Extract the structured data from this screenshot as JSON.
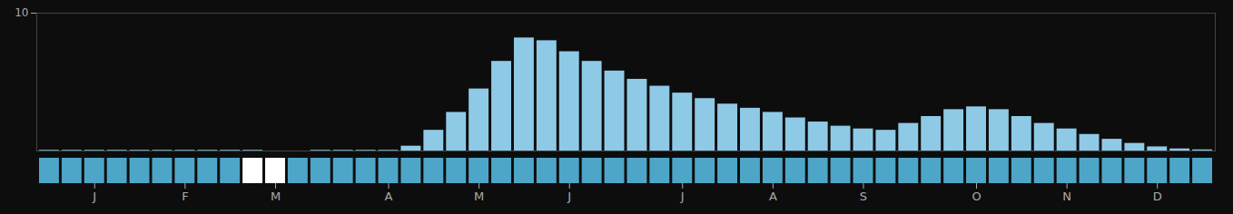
{
  "chart_data": [
    {
      "type": "bar",
      "categories": [
        null,
        null,
        "J",
        null,
        null,
        null,
        "F",
        null,
        null,
        null,
        "M",
        null,
        null,
        null,
        null,
        "A",
        null,
        null,
        null,
        "M",
        null,
        null,
        null,
        "J",
        null,
        null,
        null,
        null,
        "J",
        null,
        null,
        null,
        "A",
        null,
        null,
        null,
        "S",
        null,
        null,
        null,
        null,
        "O",
        null,
        null,
        null,
        "N",
        null,
        null,
        null,
        "D",
        null,
        null
      ],
      "values": [
        0.05,
        0.05,
        0.05,
        0.05,
        0.05,
        0.05,
        0.05,
        0.05,
        0.05,
        0.05,
        0.0,
        0.0,
        0.05,
        0.05,
        0.05,
        0.05,
        0.35,
        1.5,
        2.8,
        4.5,
        6.5,
        8.2,
        8.0,
        7.2,
        6.5,
        5.8,
        5.2,
        4.7,
        4.2,
        3.8,
        3.4,
        3.1,
        2.8,
        2.4,
        2.1,
        1.8,
        1.6,
        1.5,
        2.0,
        2.5,
        3.0,
        3.2,
        3.0,
        2.5,
        2.0,
        1.6,
        1.2,
        0.85,
        0.55,
        0.3,
        0.15,
        0.08
      ],
      "color": "#8ecae6",
      "ylim": [
        0,
        10
      ],
      "yticks": [
        10
      ],
      "grid": false
    },
    {
      "type": "strip",
      "colors": [
        "#4da6c8",
        "#4da6c8",
        "#4da6c8",
        "#4da6c8",
        "#4da6c8",
        "#4da6c8",
        "#4da6c8",
        "#4da6c8",
        "#4da6c8",
        "white",
        "white",
        "#4da6c8",
        "#4da6c8",
        "#4da6c8",
        "#4da6c8",
        "#4da6c8",
        "#4da6c8",
        "#4da6c8",
        "#4da6c8",
        "#4da6c8",
        "#4da6c8",
        "#4da6c8",
        "#4da6c8",
        "#4da6c8",
        "#4da6c8",
        "#4da6c8",
        "#4da6c8",
        "#4da6c8",
        "#4da6c8",
        "#4da6c8",
        "#4da6c8",
        "#4da6c8",
        "#4da6c8",
        "#4da6c8",
        "#4da6c8",
        "#4da6c8",
        "#4da6c8",
        "#4da6c8",
        "#4da6c8",
        "#4da6c8",
        "#4da6c8",
        "#4da6c8",
        "#4da6c8",
        "#4da6c8",
        "#4da6c8",
        "#4da6c8",
        "#4da6c8",
        "#4da6c8",
        "#4da6c8",
        "#4da6c8",
        "#4da6c8",
        "#4da6c8"
      ]
    }
  ]
}
